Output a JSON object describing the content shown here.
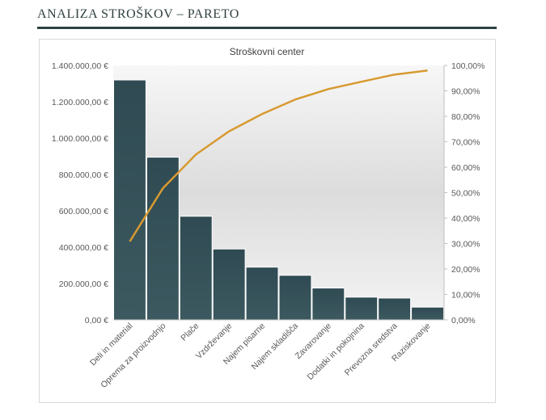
{
  "page": {
    "title": "ANALIZA STROŠKOV – PARETO"
  },
  "colors": {
    "bar": "#2f4a52",
    "line": "#d79a31",
    "title_rule": "#2e4442"
  },
  "chart_data": {
    "type": "bar",
    "title": "Stroškovni center",
    "categories": [
      "Deli in material",
      "Oprema za proizvodnjo",
      "Plače",
      "Vzdrževanje",
      "Najem pisarne",
      "Najem skladišča",
      "Zavarovanje",
      "Dodatki in pokojnina",
      "Prevozna sredstva",
      "Raziskovanje"
    ],
    "series": [
      {
        "values": [
          1320000,
          895000,
          570000,
          390000,
          290000,
          245000,
          175000,
          125000,
          120000,
          70000
        ]
      },
      {
        "values": [
          30.8,
          51.7,
          65.0,
          74.1,
          80.9,
          86.6,
          90.7,
          93.6,
          96.4,
          98.0
        ]
      }
    ],
    "ylim": [
      0,
      1400000
    ],
    "y2lim": [
      0,
      100
    ],
    "yticks": [
      "0,00 €",
      "200.000,00 €",
      "400.000,00 €",
      "600.000,00 €",
      "800.000,00 €",
      "1.000.000,00 €",
      "1.200.000,00 €",
      "1.400.000,00 €"
    ],
    "y2ticks": [
      "0,00%",
      "10,00%",
      "20,00%",
      "30,00%",
      "40,00%",
      "50,00%",
      "60,00%",
      "70,00%",
      "80,00%",
      "90,00%",
      "100,00%"
    ],
    "legend": "none",
    "grid": false
  }
}
